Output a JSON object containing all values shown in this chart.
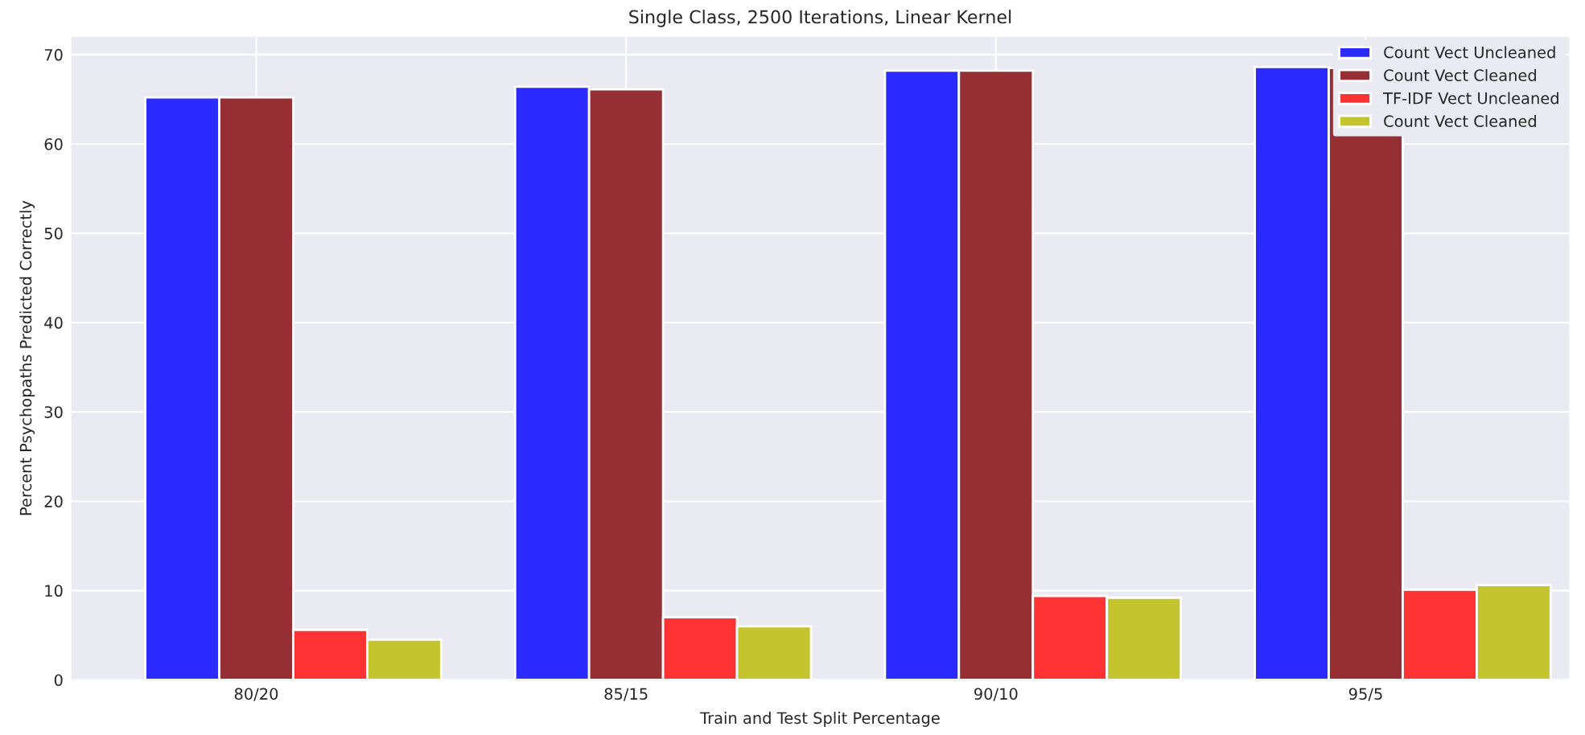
{
  "chart_data": {
    "type": "bar",
    "title": "Single Class, 2500 Iterations, Linear Kernel",
    "xlabel": "Train and Test Split Percentage",
    "ylabel": "Percent Psychopaths Predicted Correctly",
    "categories": [
      "80/20",
      "85/15",
      "90/10",
      "95/5"
    ],
    "series": [
      {
        "name": "Count Vect Uncleaned",
        "color": "#2b2bff",
        "values": [
          65.2,
          66.4,
          68.2,
          68.6
        ]
      },
      {
        "name": "Count Vect Cleaned",
        "color": "#952f33",
        "values": [
          65.2,
          66.1,
          68.2,
          68.5
        ]
      },
      {
        "name": "TF-IDF Vect Uncleaned",
        "color": "#ff3333",
        "values": [
          5.6,
          7.0,
          9.4,
          10.1
        ]
      },
      {
        "name": "Count Vect Cleaned",
        "color": "#c4c42f",
        "values": [
          4.5,
          6.0,
          9.2,
          10.6
        ]
      }
    ],
    "ylim": [
      0,
      72
    ],
    "yticks": [
      0,
      10,
      20,
      30,
      40,
      50,
      60,
      70
    ],
    "grid": true,
    "legend": "top right"
  }
}
